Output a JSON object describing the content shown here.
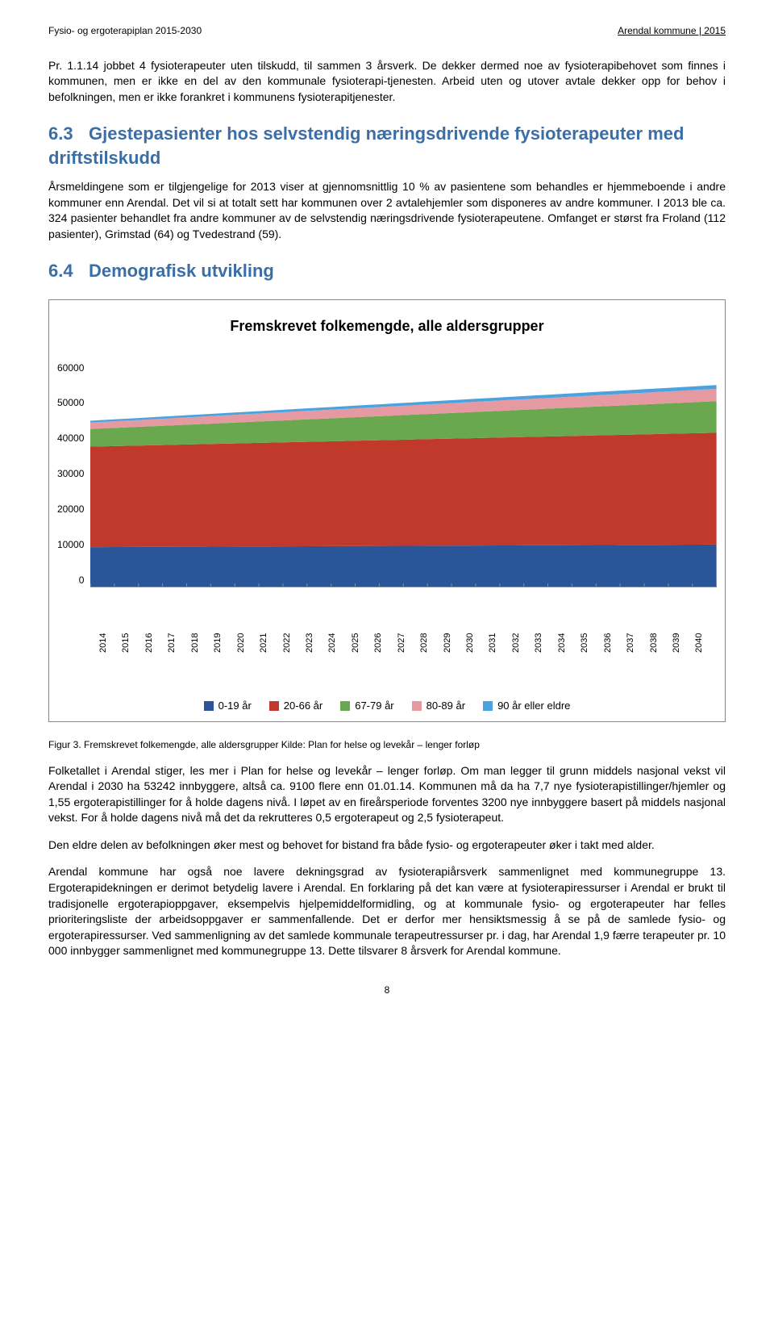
{
  "header": {
    "left": "Fysio- og ergoterapiplan 2015-2030",
    "right": "Arendal kommune | 2015"
  },
  "para1": "Pr. 1.1.14 jobbet 4 fysioterapeuter uten tilskudd, til sammen 3 årsverk. De dekker dermed noe av fysioterapibehovet som finnes i kommunen, men er ikke en del av den kommunale fysioterapi-tjenesten. Arbeid uten og utover avtale dekker opp for behov i befolkningen, men er ikke forankret i kommunens fysioterapitjenester.",
  "sec63": {
    "num": "6.3",
    "title": "Gjestepasienter hos selvstendig næringsdrivende fysioterapeuter med driftstilskudd"
  },
  "para2": "Årsmeldingene som er tilgjengelige for 2013 viser at gjennomsnittlig 10 % av pasientene som behandles er hjemmeboende i andre kommuner enn Arendal. Det vil si at totalt sett har kommunen over 2 avtalehjemler som disponeres av andre kommuner. I 2013 ble ca. 324 pasienter behandlet fra andre kommuner av de selvstendig næringsdrivende fysioterapeutene. Omfanget er størst fra Froland (112 pasienter), Grimstad (64) og Tvedestrand (59).",
  "sec64": {
    "num": "6.4",
    "title": "Demografisk utvikling"
  },
  "chart": {
    "type": "area-stacked",
    "title": "Fremskrevet folkemengde, alle aldersgrupper",
    "ylim": [
      0,
      60000
    ],
    "ytick_step": 10000,
    "yticks": [
      "60000",
      "50000",
      "40000",
      "30000",
      "20000",
      "10000",
      "0"
    ],
    "xlabels": [
      "2014",
      "2015",
      "2016",
      "2017",
      "2018",
      "2019",
      "2020",
      "2021",
      "2022",
      "2023",
      "2024",
      "2025",
      "2026",
      "2027",
      "2028",
      "2029",
      "2030",
      "2031",
      "2032",
      "2033",
      "2034",
      "2035",
      "2036",
      "2037",
      "2038",
      "2039",
      "2040"
    ],
    "series": [
      {
        "name": "0-19 år",
        "color": "#2a5599",
        "start": 10500,
        "end": 11200
      },
      {
        "name": "20-66 år",
        "color": "#c0392b",
        "start": 26800,
        "end": 29800
      },
      {
        "name": "67-79 år",
        "color": "#6aa84f",
        "start": 4700,
        "end": 8400
      },
      {
        "name": "80-89 år",
        "color": "#e49aa0",
        "start": 1700,
        "end": 3300
      },
      {
        "name": "90 år eller eldre",
        "color": "#4aa3df",
        "start": 500,
        "end": 1000
      }
    ],
    "background_color": "#ffffff",
    "grid": false
  },
  "caption": "Figur 3.    Fremskrevet folkemengde, alle aldersgrupper  Kilde: Plan for helse og levekår – lenger forløp",
  "para3": "Folketallet i Arendal stiger, les mer i Plan for helse og levekår – lenger forløp. Om man legger til grunn middels nasjonal vekst vil Arendal i 2030 ha 53242 innbyggere, altså ca. 9100 flere enn 01.01.14. Kommunen må da ha 7,7 nye fysioterapistillinger/hjemler og 1,55 ergoterapistillinger for å holde dagens nivå. I løpet av en fireårsperiode forventes 3200 nye innbyggere basert på middels nasjonal vekst. For å holde dagens nivå må det da rekrutteres 0,5 ergoterapeut og 2,5 fysioterapeut.",
  "para4": "Den eldre delen av befolkningen øker mest og behovet for bistand fra både fysio- og ergoterapeuter øker i takt med alder.",
  "para5": "Arendal kommune har også noe lavere dekningsgrad av fysioterapiårsverk sammenlignet med kommunegruppe 13. Ergoterapidekningen er derimot betydelig lavere i Arendal. En forklaring på det kan være at fysioterapiressurser i Arendal er brukt til tradisjonelle ergoterapioppgaver, eksempelvis hjelpemiddelformidling, og at kommunale fysio- og ergoterapeuter har felles prioriteringsliste der arbeidsoppgaver er sammenfallende. Det er derfor mer hensiktsmessig å se på de samlede fysio- og ergoterapiressurser. Ved sammenligning av det samlede kommunale terapeutressurser pr. i dag, har Arendal 1,9 færre terapeuter pr. 10 000 innbygger sammenlignet med kommunegruppe 13. Dette tilsvarer 8 årsverk for Arendal kommune.",
  "page": "8"
}
